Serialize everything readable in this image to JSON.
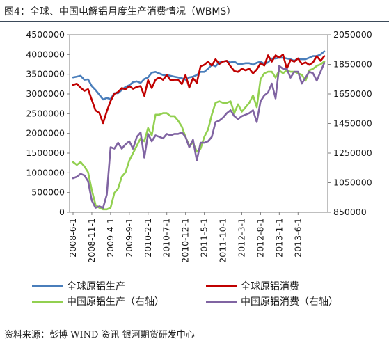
{
  "title": "图4：全球、中国电解铝月度生产消费情况（WBMS）",
  "source": "资料来源：彭博 WIND 资讯 银河期货研发中心",
  "chart_data": {
    "type": "line",
    "x_ticks": [
      "2008-6-1",
      "2008-11-1",
      "2009-4-1",
      "2009-9-1",
      "2010-2-1",
      "2010-7-1",
      "2010-12-1",
      "2011-5-1",
      "2011-10-1",
      "2012-3-1",
      "2012-8-1",
      "2013-1-1",
      "2013-6-1"
    ],
    "ylim_left": [
      0,
      4500000
    ],
    "yticks_left": [
      "0",
      "500000",
      "1000000",
      "1500000",
      "2000000",
      "2500000",
      "3000000",
      "3500000",
      "4000000",
      "4500000"
    ],
    "ylim_right": [
      850000,
      2050000
    ],
    "yticks_right": [
      "850000",
      "1050000",
      "1250000",
      "1450000",
      "1650000",
      "1850000",
      "2050000"
    ],
    "series": [
      {
        "name": "全球原铝生产",
        "axis": "left",
        "color": "#4a7ebb",
        "values": [
          3420000,
          3440000,
          3460000,
          3360000,
          3370000,
          3200000,
          3100000,
          2980000,
          2860000,
          2900000,
          2870000,
          3020000,
          3020000,
          3100000,
          3180000,
          3220000,
          3300000,
          3320000,
          3280000,
          3380000,
          3420000,
          3540000,
          3560000,
          3520000,
          3480000,
          3480000,
          3460000,
          3440000,
          3420000,
          3400000,
          3360000,
          3420000,
          3440000,
          3480000,
          3560000,
          3560000,
          3640000,
          3740000,
          3700000,
          3800000,
          3820000,
          3840000,
          3800000,
          3820000,
          3760000,
          3760000,
          3780000,
          3780000,
          3740000,
          3790000,
          3820000,
          3760000,
          3800000,
          3900000,
          3900000,
          3920000,
          3920000,
          3900000,
          3880000,
          3840000,
          3900000,
          3880000,
          3880000,
          3920000,
          3960000,
          3960000,
          4000000,
          4080000
        ]
      },
      {
        "name": "全球原铝消费",
        "axis": "left",
        "color": "#c00000",
        "values": [
          3230000,
          3260000,
          3160000,
          3080000,
          3120000,
          2850000,
          2580000,
          2520000,
          2260000,
          2560000,
          2820000,
          3000000,
          3050000,
          3150000,
          3120000,
          3200000,
          3130000,
          3180000,
          3200000,
          2950000,
          3350000,
          3150000,
          3360000,
          3420000,
          3360000,
          3480000,
          3350000,
          3360000,
          3360000,
          3250000,
          3480000,
          3160000,
          3400000,
          3280000,
          3700000,
          3740000,
          3820000,
          3720000,
          3880000,
          3760000,
          3820000,
          3840000,
          3700000,
          3580000,
          3560000,
          3640000,
          3600000,
          3640000,
          3520000,
          3620000,
          3780000,
          3720000,
          3980000,
          3820000,
          3980000,
          3920000,
          4000000,
          3640000,
          3860000,
          3820000,
          3900000,
          3760000,
          3800000,
          3740000,
          3800000,
          3960000,
          3840000,
          3960000
        ]
      },
      {
        "name": "中国原铝生产（右轴）",
        "axis": "right",
        "color": "#92d050",
        "values": [
          1190000,
          1170000,
          1190000,
          1160000,
          1120000,
          1000000,
          900000,
          880000,
          870000,
          870000,
          880000,
          980000,
          1010000,
          1090000,
          1120000,
          1200000,
          1250000,
          1300000,
          1350000,
          1330000,
          1420000,
          1370000,
          1510000,
          1510000,
          1520000,
          1520000,
          1500000,
          1500000,
          1470000,
          1430000,
          1360000,
          1300000,
          1320000,
          1260000,
          1280000,
          1360000,
          1410000,
          1510000,
          1590000,
          1600000,
          1590000,
          1590000,
          1600000,
          1520000,
          1580000,
          1530000,
          1560000,
          1590000,
          1640000,
          1560000,
          1750000,
          1790000,
          1800000,
          1800000,
          1760000,
          1810000,
          1790000,
          1810000,
          1800000,
          1800000,
          1790000,
          1780000,
          1740000,
          1810000,
          1820000,
          1840000,
          1850000,
          1870000
        ]
      },
      {
        "name": "中国原铝消费（右轴）",
        "axis": "right",
        "color": "#8064a2",
        "values": [
          1080000,
          1090000,
          1110000,
          1100000,
          1060000,
          930000,
          880000,
          890000,
          880000,
          970000,
          1290000,
          1280000,
          1320000,
          1280000,
          1310000,
          1330000,
          1280000,
          1360000,
          1390000,
          1220000,
          1380000,
          1330000,
          1370000,
          1360000,
          1350000,
          1380000,
          1370000,
          1380000,
          1380000,
          1390000,
          1360000,
          1290000,
          1340000,
          1200000,
          1320000,
          1320000,
          1330000,
          1360000,
          1460000,
          1470000,
          1490000,
          1520000,
          1540000,
          1500000,
          1480000,
          1500000,
          1510000,
          1520000,
          1540000,
          1460000,
          1600000,
          1640000,
          1660000,
          1720000,
          1620000,
          1840000,
          1820000,
          1820000,
          1760000,
          1800000,
          1800000,
          1720000,
          1760000,
          1800000,
          1790000,
          1740000,
          1800000,
          1860000
        ]
      }
    ]
  }
}
